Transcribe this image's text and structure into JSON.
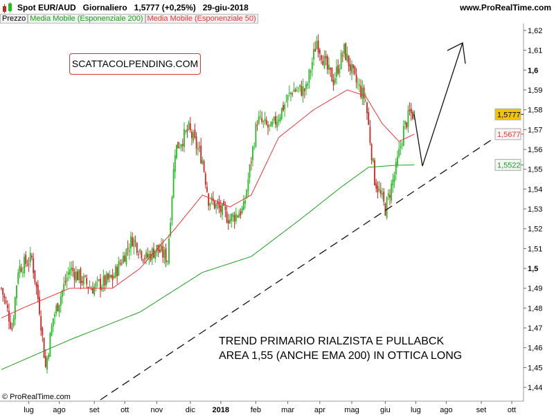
{
  "header": {
    "title": "Spot EUR/AUD   Giornaliero   1,5777 (+0,25%)   29-giu-2018",
    "site": "www.ProRealTime.com"
  },
  "legend": {
    "price": "Prezzo",
    "ema200": "Media Mobile (Esponenziale 200)",
    "ema50": "Media Mobile (Esponenziale 50)"
  },
  "copyright": "© ProRealTime.com",
  "promo": "SCATTACOLPENDING.COM",
  "note": "TREND PRIMARIO RIALZISTA E PULLABCK\nAREA 1,55 (ANCHE EMA 200) IN OTTICA LONG",
  "colors": {
    "up": "#22bb22",
    "down": "#cc2222",
    "ema200": "#1aa01a",
    "ema50": "#ee3333",
    "last": "#f5c400"
  },
  "chart_data": {
    "type": "candlestick",
    "title": "Spot EUR/AUD Giornaliero",
    "ylim": [
      1.44,
      1.62
    ],
    "yticks": [
      "1,44",
      "1,45",
      "1,46",
      "1,47",
      "1,48",
      "1,49",
      "1,5",
      "1,51",
      "1,52",
      "1,53",
      "1,54",
      "1,55",
      "1,56",
      "1,57",
      "1,58",
      "1,59",
      "1,6",
      "1,61",
      "1,62"
    ],
    "xticks": [
      "lug",
      "ago",
      "set",
      "ott",
      "nov",
      "dic",
      "2018",
      "feb",
      "mar",
      "apr",
      "mag",
      "giu",
      "lug",
      "ago",
      "set",
      "ott"
    ],
    "xtick_days": [
      18,
      38,
      61,
      81,
      102,
      124,
      144,
      167,
      188,
      209,
      230,
      252,
      272,
      292,
      315,
      335
    ],
    "price_path": [
      [
        0,
        1.49
      ],
      [
        7,
        1.47
      ],
      [
        11,
        1.5
      ],
      [
        20,
        1.505
      ],
      [
        25,
        1.48
      ],
      [
        29,
        1.45
      ],
      [
        34,
        1.475
      ],
      [
        45,
        1.5
      ],
      [
        59,
        1.49
      ],
      [
        73,
        1.495
      ],
      [
        86,
        1.515
      ],
      [
        95,
        1.505
      ],
      [
        102,
        1.51
      ],
      [
        109,
        1.505
      ],
      [
        114,
        1.56
      ],
      [
        123,
        1.57
      ],
      [
        132,
        1.555
      ],
      [
        136,
        1.535
      ],
      [
        150,
        1.525
      ],
      [
        159,
        1.53
      ],
      [
        168,
        1.575
      ],
      [
        177,
        1.57
      ],
      [
        191,
        1.59
      ],
      [
        200,
        1.59
      ],
      [
        207,
        1.615
      ],
      [
        214,
        1.6
      ],
      [
        218,
        1.595
      ],
      [
        225,
        1.61
      ],
      [
        232,
        1.595
      ],
      [
        239,
        1.585
      ],
      [
        245,
        1.545
      ],
      [
        252,
        1.53
      ],
      [
        259,
        1.55
      ],
      [
        264,
        1.57
      ],
      [
        268,
        1.578
      ],
      [
        271,
        1.5777
      ]
    ],
    "ema50": [
      [
        0,
        1.475
      ],
      [
        14,
        1.48
      ],
      [
        45,
        1.49
      ],
      [
        73,
        1.49
      ],
      [
        91,
        1.5
      ],
      [
        114,
        1.52
      ],
      [
        132,
        1.537
      ],
      [
        150,
        1.531
      ],
      [
        164,
        1.537
      ],
      [
        182,
        1.566
      ],
      [
        205,
        1.58
      ],
      [
        227,
        1.59
      ],
      [
        239,
        1.587
      ],
      [
        250,
        1.573
      ],
      [
        261,
        1.564
      ],
      [
        271,
        1.5677
      ]
    ],
    "ema200": [
      [
        0,
        1.449
      ],
      [
        45,
        1.464
      ],
      [
        91,
        1.478
      ],
      [
        132,
        1.498
      ],
      [
        164,
        1.506
      ],
      [
        195,
        1.524
      ],
      [
        223,
        1.541
      ],
      [
        241,
        1.551
      ],
      [
        259,
        1.552
      ],
      [
        271,
        1.5522
      ]
    ],
    "last_values": {
      "price": "1,5777",
      "ema50": "1,5677",
      "ema200": "1,5522"
    }
  }
}
